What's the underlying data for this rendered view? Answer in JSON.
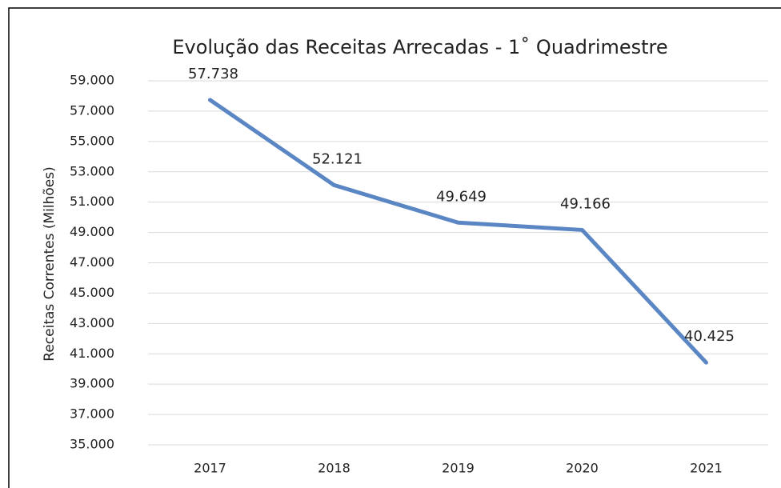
{
  "chart_data": {
    "type": "line",
    "title": "Evolução das Receitas Arrecadas  - 1˚ Quadrimestre",
    "y_label": "Receitas Correntes (Milhões)",
    "categories": [
      "2017",
      "2018",
      "2019",
      "2020",
      "2021"
    ],
    "series": [
      {
        "name": "Receitas Correntes",
        "color": "#5a86c4",
        "values": [
          57738,
          52121,
          49649,
          49166,
          40425
        ],
        "value_labels": [
          "57.738",
          "52.121",
          "49.649",
          "49.166",
          "40.425"
        ]
      }
    ],
    "ylim": [
      35000,
      59000
    ],
    "yticks": [
      {
        "value": 35000,
        "label": "35.000"
      },
      {
        "value": 37000,
        "label": "37.000"
      },
      {
        "value": 39000,
        "label": "39.000"
      },
      {
        "value": 41000,
        "label": "41.000"
      },
      {
        "value": 43000,
        "label": "43.000"
      },
      {
        "value": 45000,
        "label": "45.000"
      },
      {
        "value": 47000,
        "label": "47.000"
      },
      {
        "value": 49000,
        "label": "49.000"
      },
      {
        "value": 51000,
        "label": "51.000"
      },
      {
        "value": 53000,
        "label": "53.000"
      },
      {
        "value": 55000,
        "label": "55.000"
      },
      {
        "value": 57000,
        "label": "57.000"
      },
      {
        "value": 59000,
        "label": "59.000"
      }
    ],
    "grid": true
  }
}
